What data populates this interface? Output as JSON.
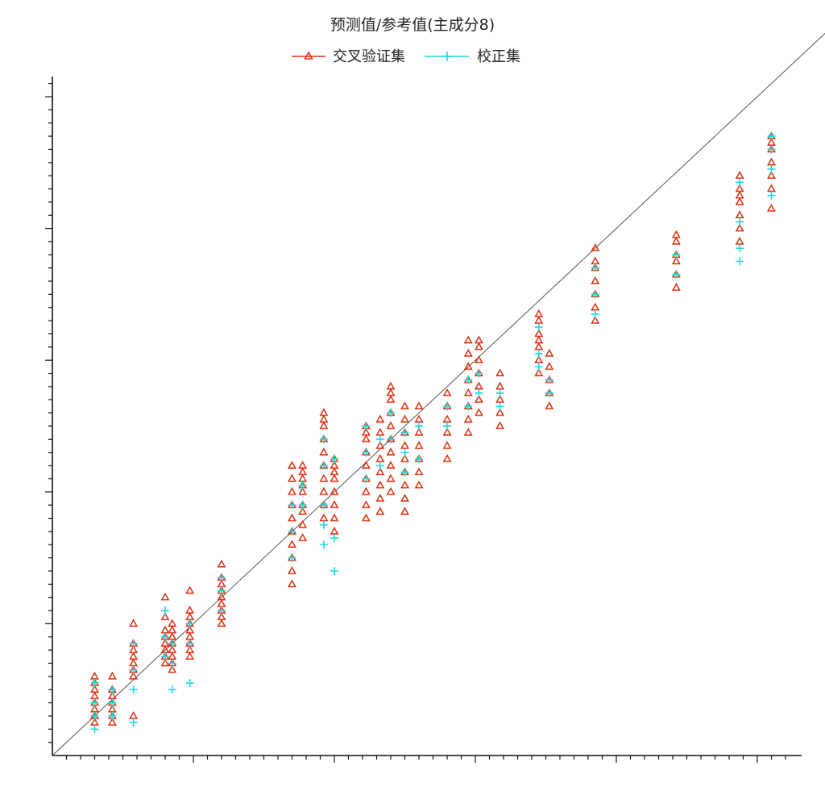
{
  "chart_data": {
    "type": "scatter",
    "title": "预测值/参考值(主成分8)",
    "xlabel": "",
    "ylabel": "",
    "xlim": [
      0,
      100
    ],
    "ylim": [
      0,
      100
    ],
    "grid": false,
    "legend_placement": "top-center",
    "reference_line": {
      "from": [
        0,
        0
      ],
      "to": [
        100,
        100
      ]
    },
    "colors": {
      "validation": "#e03010",
      "calibration": "#20d8e0"
    },
    "series": [
      {
        "name": "交叉验证集",
        "marker": "triangle",
        "groups": [
          {
            "x": 6.0,
            "y": [
              5,
              6,
              7,
              8,
              9,
              10,
              11,
              12
            ]
          },
          {
            "x": 8.5,
            "y": [
              5,
              6,
              7,
              8,
              9,
              10,
              12
            ]
          },
          {
            "x": 11.5,
            "y": [
              6,
              12,
              13,
              14,
              15,
              16,
              17,
              20
            ]
          },
          {
            "x": 16.0,
            "y": [
              14,
              15,
              16,
              17,
              18,
              19,
              21,
              24
            ]
          },
          {
            "x": 17.0,
            "y": [
              13,
              14,
              15,
              16,
              17,
              18,
              19,
              20
            ]
          },
          {
            "x": 19.5,
            "y": [
              15,
              16,
              17,
              18,
              19,
              20,
              21,
              22,
              25
            ]
          },
          {
            "x": 24.0,
            "y": [
              20,
              21,
              22,
              23,
              24,
              25,
              26,
              27,
              29
            ]
          },
          {
            "x": 34.0,
            "y": [
              26,
              28,
              30,
              32,
              34,
              36,
              38,
              40,
              42,
              44
            ]
          },
          {
            "x": 35.5,
            "y": [
              33,
              35,
              37,
              38,
              40,
              41,
              42,
              43,
              44
            ]
          },
          {
            "x": 38.5,
            "y": [
              36,
              38,
              40,
              42,
              44,
              46,
              48,
              50,
              51,
              52
            ]
          },
          {
            "x": 40.0,
            "y": [
              34,
              36,
              38,
              40,
              42,
              43,
              44,
              45
            ]
          },
          {
            "x": 44.5,
            "y": [
              36,
              38,
              40,
              42,
              44,
              46,
              48,
              49,
              50
            ]
          },
          {
            "x": 46.5,
            "y": [
              37,
              39,
              41,
              43,
              45,
              47,
              49,
              51
            ]
          },
          {
            "x": 48.0,
            "y": [
              40,
              42,
              44,
              46,
              48,
              50,
              52,
              54,
              55,
              56
            ]
          },
          {
            "x": 50.0,
            "y": [
              37,
              39,
              41,
              43,
              45,
              47,
              49,
              51,
              53
            ]
          },
          {
            "x": 52.0,
            "y": [
              41,
              43,
              45,
              47,
              49,
              51,
              53
            ]
          },
          {
            "x": 56.0,
            "y": [
              45,
              47,
              49,
              51,
              53,
              55
            ]
          },
          {
            "x": 59.0,
            "y": [
              49,
              51,
              53,
              55,
              57,
              59,
              61,
              63
            ]
          },
          {
            "x": 60.5,
            "y": [
              52,
              54,
              56,
              58,
              60,
              62,
              63
            ]
          },
          {
            "x": 63.5,
            "y": [
              50,
              52,
              54,
              56,
              58
            ]
          },
          {
            "x": 69.0,
            "y": [
              58,
              60,
              62,
              63,
              64,
              66,
              67
            ]
          },
          {
            "x": 70.5,
            "y": [
              53,
              55,
              57,
              59,
              61
            ]
          },
          {
            "x": 77.0,
            "y": [
              66,
              68,
              70,
              72,
              74,
              75,
              77
            ]
          },
          {
            "x": 88.5,
            "y": [
              71,
              73,
              75,
              76,
              78,
              79
            ]
          },
          {
            "x": 97.5,
            "y": [
              78,
              80,
              82,
              84,
              85,
              86,
              88
            ]
          },
          {
            "x": 102.0,
            "y": [
              83,
              86,
              88,
              90,
              92,
              93,
              94
            ]
          }
        ]
      },
      {
        "name": "校正集",
        "marker": "plus",
        "groups": [
          {
            "x": 6.0,
            "y": [
              4,
              6,
              8,
              11
            ]
          },
          {
            "x": 8.5,
            "y": [
              6,
              8,
              10
            ]
          },
          {
            "x": 11.5,
            "y": [
              5,
              10,
              13,
              17
            ]
          },
          {
            "x": 16.0,
            "y": [
              15,
              18,
              22
            ]
          },
          {
            "x": 17.0,
            "y": [
              10,
              14,
              17
            ]
          },
          {
            "x": 19.5,
            "y": [
              11,
              17,
              20
            ]
          },
          {
            "x": 24.0,
            "y": [
              22,
              25,
              27
            ]
          },
          {
            "x": 34.0,
            "y": [
              30,
              34,
              38
            ]
          },
          {
            "x": 35.5,
            "y": [
              38,
              41
            ]
          },
          {
            "x": 38.5,
            "y": [
              32,
              35,
              38,
              44,
              48
            ]
          },
          {
            "x": 40.0,
            "y": [
              28,
              33,
              45
            ]
          },
          {
            "x": 44.5,
            "y": [
              42,
              46,
              50
            ]
          },
          {
            "x": 46.5,
            "y": [
              44,
              48
            ]
          },
          {
            "x": 48.0,
            "y": [
              48,
              52
            ]
          },
          {
            "x": 50.0,
            "y": [
              43,
              46,
              49
            ]
          },
          {
            "x": 52.0,
            "y": [
              45,
              50
            ]
          },
          {
            "x": 56.0,
            "y": [
              50,
              53
            ]
          },
          {
            "x": 59.0,
            "y": [
              53,
              57
            ]
          },
          {
            "x": 60.5,
            "y": [
              55,
              58
            ]
          },
          {
            "x": 63.5,
            "y": [
              53,
              55
            ]
          },
          {
            "x": 69.0,
            "y": [
              59,
              61,
              65
            ]
          },
          {
            "x": 70.5,
            "y": [
              55,
              57
            ]
          },
          {
            "x": 77.0,
            "y": [
              67,
              70,
              74
            ]
          },
          {
            "x": 88.5,
            "y": [
              73,
              76
            ]
          },
          {
            "x": 97.5,
            "y": [
              75,
              77,
              81,
              87
            ]
          },
          {
            "x": 102.0,
            "y": [
              85,
              89,
              92,
              94
            ]
          }
        ]
      }
    ]
  }
}
